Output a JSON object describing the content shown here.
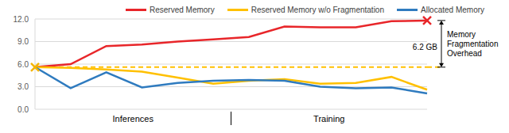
{
  "chart_data": {
    "type": "line",
    "categories": [
      null,
      null,
      null,
      null,
      null,
      null,
      null,
      null,
      null,
      null,
      null,
      null
    ],
    "series": [
      {
        "name": "Reserved Memory",
        "color": "#e8262a",
        "values": [
          5.6,
          6.0,
          8.4,
          8.6,
          9.0,
          9.3,
          9.6,
          11.0,
          10.9,
          10.9,
          11.7,
          11.8
        ]
      },
      {
        "name": "Reserved Memory w/o Fragmentation",
        "color": "#ffc000",
        "values": [
          5.6,
          5.5,
          5.3,
          5.0,
          4.2,
          3.4,
          3.8,
          4.0,
          3.4,
          3.5,
          4.3,
          2.6
        ]
      },
      {
        "name": "Allocated Memory",
        "color": "#2f7bbf",
        "values": [
          5.6,
          2.8,
          4.9,
          2.9,
          3.5,
          3.8,
          3.9,
          3.8,
          3.0,
          2.8,
          2.9,
          2.1
        ]
      }
    ],
    "ylim": [
      0,
      12
    ],
    "yticks": [
      {
        "value": 0,
        "label": "0.0"
      },
      {
        "value": 3,
        "label": "3.0"
      },
      {
        "value": 6,
        "label": "6.0"
      },
      {
        "value": 9,
        "label": "9.0"
      },
      {
        "value": 12,
        "label": "12.0"
      }
    ],
    "grid": true,
    "legend": "top",
    "tick_labels": "y",
    "annotations": [
      "Inferences",
      "Training",
      "6.2 GB",
      "Memory Fragmentation Overhead"
    ]
  }
}
